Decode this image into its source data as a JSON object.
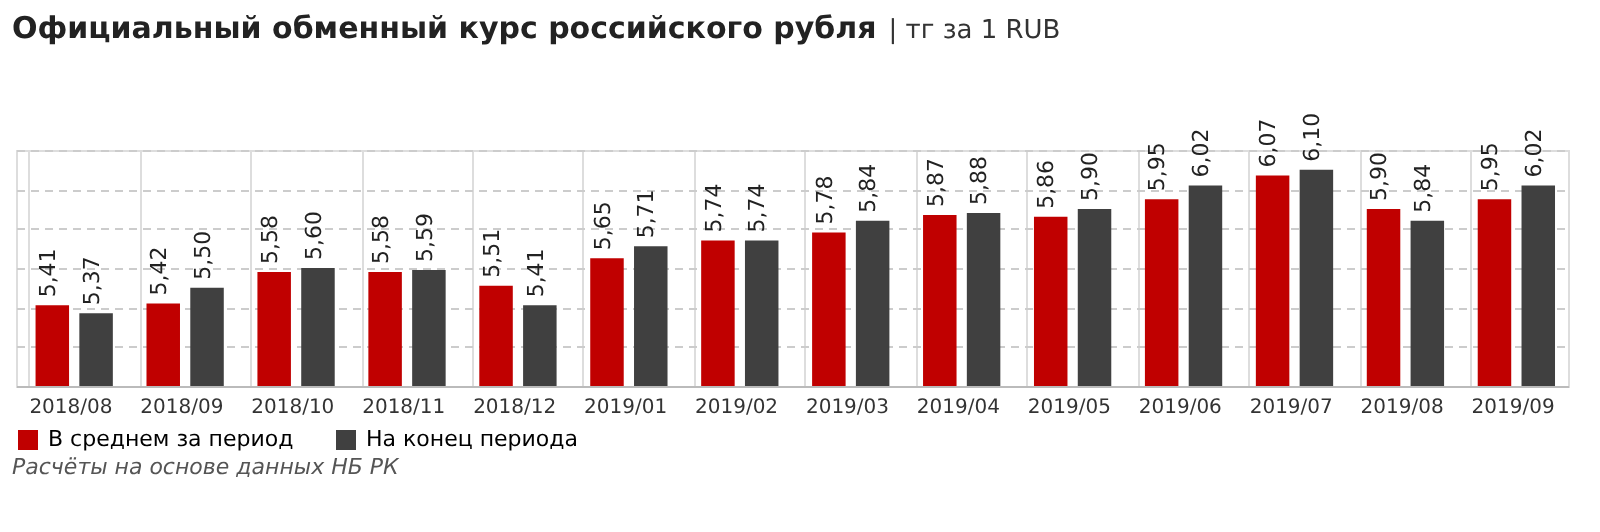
{
  "chart_data": {
    "type": "bar",
    "title": "Официальный обменный курс российского рубля",
    "subtitle": "| тг за 1 RUB",
    "categories": [
      "2018/08",
      "2018/09",
      "2018/10",
      "2018/11",
      "2018/12",
      "2019/01",
      "2019/02",
      "2019/03",
      "2019/04",
      "2019/05",
      "2019/06",
      "2019/07",
      "2019/08",
      "2019/09"
    ],
    "series": [
      {
        "name": "В среднем за период",
        "color": "#c00000",
        "values": [
          5.41,
          5.42,
          5.58,
          5.58,
          5.51,
          5.65,
          5.74,
          5.78,
          5.87,
          5.86,
          5.95,
          6.07,
          5.9,
          5.95
        ],
        "value_labels": [
          "5,41",
          "5,42",
          "5,58",
          "5,58",
          "5,51",
          "5,65",
          "5,74",
          "5,78",
          "5,87",
          "5,86",
          "5,95",
          "6,07",
          "5,90",
          "5,95"
        ]
      },
      {
        "name": "На конец периода",
        "color": "#404040",
        "values": [
          5.37,
          5.5,
          5.6,
          5.59,
          5.41,
          5.71,
          5.74,
          5.84,
          5.88,
          5.9,
          6.02,
          6.1,
          5.84,
          6.02
        ],
        "value_labels": [
          "5,37",
          "5,50",
          "5,60",
          "5,59",
          "5,41",
          "5,71",
          "5,74",
          "5,84",
          "5,88",
          "5,90",
          "6,02",
          "6,10",
          "5,84",
          "6,02"
        ]
      }
    ],
    "ylim": [
      5,
      6.2
    ],
    "tick_labels": "x",
    "grid": true,
    "legend": "bottom",
    "annotations": [
      "Расчёты на основе данных НБ РК"
    ]
  }
}
